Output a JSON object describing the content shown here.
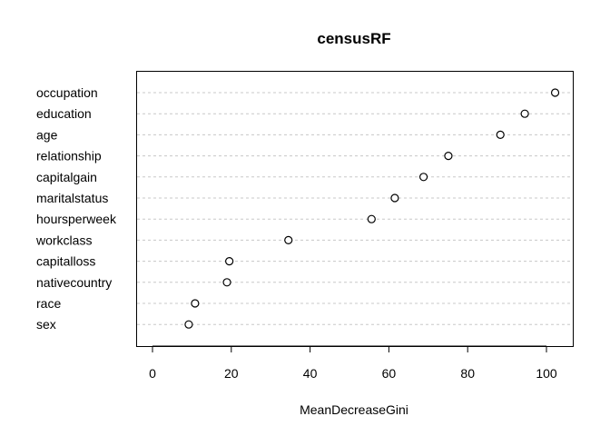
{
  "chart_data": {
    "type": "scatter",
    "style": "dotchart",
    "title": "censusRF",
    "xlabel": "MeanDecreaseGini",
    "ylabel": "",
    "xlim": [
      -4,
      106
    ],
    "xticks": [
      0,
      20,
      40,
      60,
      80,
      100
    ],
    "grid": "horizontal dotted",
    "legend": "none",
    "categories": [
      "occupation",
      "education",
      "age",
      "relationship",
      "capitalgain",
      "maritalstatus",
      "hoursperweek",
      "workclass",
      "capitalloss",
      "nativecountry",
      "race",
      "sex"
    ],
    "values": [
      102.2,
      94.5,
      88.3,
      75.1,
      68.8,
      61.5,
      55.6,
      34.5,
      19.5,
      18.9,
      10.8,
      9.2
    ]
  }
}
